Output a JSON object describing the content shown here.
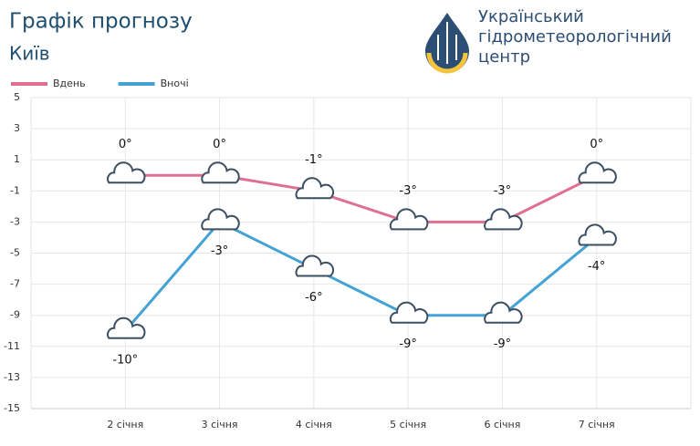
{
  "header": {
    "title": "Графік прогнозу",
    "subtitle": "Київ",
    "logo_text": [
      "Український",
      "гідрометеорологічний",
      "центр"
    ]
  },
  "chart_data": {
    "type": "line",
    "categories": [
      "2 січня",
      "3 січня",
      "4 січня",
      "5 січня",
      "6 січня",
      "7 січня"
    ],
    "series": [
      {
        "name": "Вдень",
        "color": "#e07092",
        "values": [
          0,
          0,
          -1,
          -3,
          -3,
          0
        ],
        "value_labels": [
          "0°",
          "0°",
          "-1°",
          "-3°",
          "-3°",
          "0°"
        ]
      },
      {
        "name": "Вночі",
        "color": "#44a3d5",
        "values": [
          -10,
          -3,
          -6,
          -9,
          -9,
          -4
        ],
        "value_labels": [
          "-10°",
          "-3°",
          "-6°",
          "-9°",
          "-9°",
          "-4°"
        ]
      }
    ],
    "ylim": [
      -15,
      5
    ],
    "yticks": [
      5,
      3,
      1,
      -1,
      -3,
      -5,
      -7,
      -9,
      -11,
      -13,
      -15
    ],
    "grid": true,
    "legend": "top-left"
  }
}
